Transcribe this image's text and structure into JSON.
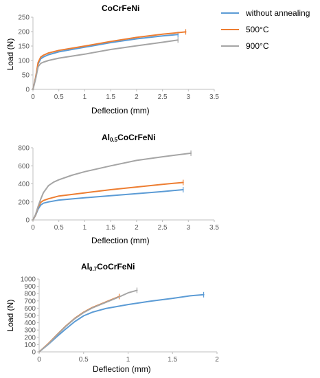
{
  "legend": {
    "items": [
      {
        "label": "without annealing",
        "color": "#5B9BD5"
      },
      {
        "label": "500°C",
        "color": "#ED7D31"
      },
      {
        "label": "900°C",
        "color": "#A5A5A5"
      }
    ]
  },
  "chart_data": [
    {
      "type": "line",
      "title": "CoCrFeNi",
      "xlabel": "Deflection (mm)",
      "ylabel": "Load (N)",
      "xlim": [
        0,
        3.5
      ],
      "ylim": [
        0,
        250
      ],
      "xticks": [
        "0",
        "0.5",
        "1",
        "1.5",
        "2",
        "2.5",
        "3",
        "3.5"
      ],
      "yticks": [
        "0",
        "50",
        "100",
        "150",
        "200",
        "250"
      ],
      "grid": false,
      "legend": "right",
      "series": [
        {
          "name": "without annealing",
          "color": "#5B9BD5",
          "x": [
            0,
            0.05,
            0.1,
            0.15,
            0.2,
            0.3,
            0.5,
            1.0,
            1.5,
            2.0,
            2.5,
            2.8
          ],
          "y": [
            0,
            40,
            88,
            106,
            112,
            120,
            130,
            146,
            162,
            175,
            185,
            190
          ]
        },
        {
          "name": "500°C",
          "color": "#ED7D31",
          "x": [
            0,
            0.05,
            0.1,
            0.15,
            0.2,
            0.3,
            0.5,
            1.0,
            1.5,
            2.0,
            2.5,
            2.95
          ],
          "y": [
            0,
            40,
            93,
            112,
            118,
            126,
            135,
            150,
            166,
            180,
            191,
            199
          ]
        },
        {
          "name": "900°C",
          "color": "#A5A5A5",
          "x": [
            0,
            0.05,
            0.1,
            0.15,
            0.2,
            0.3,
            0.5,
            1.0,
            1.5,
            2.0,
            2.5,
            2.8
          ],
          "y": [
            0,
            35,
            78,
            90,
            94,
            100,
            108,
            122,
            138,
            151,
            163,
            171
          ]
        }
      ]
    },
    {
      "type": "line",
      "title": "Al",
      "title_sub": "0.5",
      "title_rest": "CoCrFeNi",
      "xlabel": "Deflection (mm)",
      "ylabel": "",
      "xlim": [
        0,
        3.5
      ],
      "ylim": [
        0,
        800
      ],
      "xticks": [
        "0",
        "0.5",
        "1",
        "1.5",
        "2",
        "2.5",
        "3",
        "3.5"
      ],
      "yticks": [
        "0",
        "200",
        "400",
        "600",
        "800"
      ],
      "grid": false,
      "series": [
        {
          "name": "without annealing",
          "color": "#5B9BD5",
          "x": [
            0,
            0.05,
            0.1,
            0.15,
            0.2,
            0.3,
            0.5,
            1.0,
            1.5,
            2.0,
            2.5,
            2.9
          ],
          "y": [
            0,
            50,
            120,
            165,
            185,
            200,
            220,
            245,
            268,
            292,
            315,
            335
          ]
        },
        {
          "name": "500°C",
          "color": "#ED7D31",
          "x": [
            0,
            0.05,
            0.1,
            0.15,
            0.2,
            0.3,
            0.5,
            1.0,
            1.5,
            2.0,
            2.5,
            2.9
          ],
          "y": [
            0,
            55,
            140,
            195,
            215,
            235,
            265,
            300,
            335,
            365,
            395,
            415
          ]
        },
        {
          "name": "900°C",
          "color": "#A5A5A5",
          "x": [
            0,
            0.05,
            0.1,
            0.15,
            0.2,
            0.3,
            0.4,
            0.5,
            0.75,
            1.0,
            1.5,
            2.0,
            2.5,
            3.05
          ],
          "y": [
            0,
            60,
            150,
            230,
            300,
            380,
            420,
            445,
            495,
            535,
            600,
            660,
            700,
            740
          ]
        }
      ]
    },
    {
      "type": "line",
      "title": "Al",
      "title_sub": "0.7",
      "title_rest": "CoCrFeNi",
      "xlabel": "Deflection (mm)",
      "ylabel": "Load (N)",
      "xlim": [
        0,
        2
      ],
      "ylim": [
        0,
        1000
      ],
      "xticks": [
        "0",
        "0.5",
        "1",
        "1.5",
        "2"
      ],
      "yticks": [
        "0",
        "100",
        "200",
        "300",
        "400",
        "500",
        "600",
        "700",
        "800",
        "900",
        "1000"
      ],
      "grid": false,
      "series": [
        {
          "name": "without annealing",
          "color": "#5B9BD5",
          "x": [
            0,
            0.1,
            0.2,
            0.3,
            0.4,
            0.5,
            0.6,
            0.75,
            1.0,
            1.25,
            1.5,
            1.7,
            1.85
          ],
          "y": [
            0,
            100,
            210,
            315,
            415,
            495,
            545,
            595,
            650,
            695,
            735,
            770,
            785
          ]
        },
        {
          "name": "500°C",
          "color": "#ED7D31",
          "x": [
            0,
            0.1,
            0.2,
            0.3,
            0.4,
            0.5,
            0.6,
            0.7,
            0.8,
            0.9
          ],
          "y": [
            0,
            110,
            235,
            355,
            460,
            545,
            610,
            660,
            710,
            760
          ]
        },
        {
          "name": "900°C",
          "color": "#A5A5A5",
          "x": [
            0,
            0.1,
            0.2,
            0.3,
            0.4,
            0.5,
            0.6,
            0.7,
            0.8,
            0.9,
            1.0,
            1.1
          ],
          "y": [
            0,
            105,
            230,
            350,
            455,
            540,
            605,
            655,
            705,
            755,
            810,
            845
          ]
        }
      ]
    }
  ]
}
